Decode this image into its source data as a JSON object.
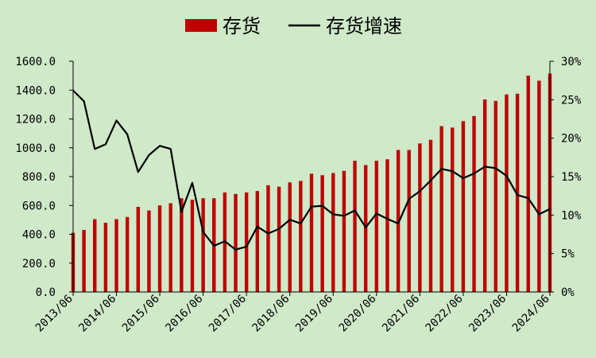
{
  "chart_data": {
    "type": "bar+line",
    "title": "",
    "legend": {
      "placement": "top-center",
      "items": [
        {
          "label": "存货",
          "kind": "bar",
          "color": "#c00000"
        },
        {
          "label": "存货增速",
          "kind": "line",
          "color": "#000000"
        }
      ]
    },
    "colors": {
      "background": "#cfe9c9",
      "bar": "#c00000",
      "line": "#000000"
    },
    "categories": [
      "2013/06",
      "2013/09",
      "2013/12",
      "2014/03",
      "2014/06",
      "2014/09",
      "2014/12",
      "2015/03",
      "2015/06",
      "2015/09",
      "2015/12",
      "2016/03",
      "2016/06",
      "2016/09",
      "2016/12",
      "2017/03",
      "2017/06",
      "2017/09",
      "2017/12",
      "2018/03",
      "2018/06",
      "2018/09",
      "2018/12",
      "2019/03",
      "2019/06",
      "2019/09",
      "2019/12",
      "2020/03",
      "2020/06",
      "2020/09",
      "2020/12",
      "2021/03",
      "2021/06",
      "2021/09",
      "2021/12",
      "2022/03",
      "2022/06",
      "2022/09",
      "2022/12",
      "2023/03",
      "2023/06",
      "2023/09",
      "2023/12",
      "2024/03",
      "2024/06"
    ],
    "x_tick_labels": [
      "2013/06",
      "2014/06",
      "2015/06",
      "2016/06",
      "2017/06",
      "2018/06",
      "2019/06",
      "2020/06",
      "2021/06",
      "2022/06",
      "2023/06",
      "2024/06"
    ],
    "series": [
      {
        "name": "存货",
        "axis": "left",
        "values": [
          410,
          430,
          505,
          480,
          505,
          520,
          590,
          565,
          600,
          615,
          650,
          640,
          650,
          650,
          690,
          680,
          690,
          700,
          740,
          730,
          760,
          770,
          820,
          810,
          825,
          840,
          910,
          880,
          910,
          920,
          985,
          985,
          1030,
          1055,
          1150,
          1140,
          1185,
          1220,
          1335,
          1325,
          1370,
          1375,
          1500,
          1465,
          1515
        ]
      },
      {
        "name": "存货增速",
        "axis": "right",
        "values": [
          26.2,
          24.8,
          18.6,
          19.2,
          22.3,
          20.5,
          15.6,
          17.8,
          19.0,
          18.6,
          10.4,
          14.2,
          7.8,
          6.0,
          6.6,
          5.5,
          5.9,
          8.5,
          7.6,
          8.2,
          9.4,
          8.9,
          11.1,
          11.2,
          10.1,
          9.9,
          10.6,
          8.4,
          10.2,
          9.5,
          8.9,
          12.1,
          13.1,
          14.5,
          16.0,
          15.7,
          14.8,
          15.4,
          16.3,
          16.1,
          15.1,
          12.6,
          12.2,
          10.1,
          10.8
        ]
      }
    ],
    "y_left": {
      "min": 0,
      "max": 1600,
      "step": 200,
      "tick_labels": [
        "0.0",
        "200.0",
        "400.0",
        "600.0",
        "800.0",
        "1000.0",
        "1200.0",
        "1400.0",
        "1600.0"
      ]
    },
    "y_right": {
      "min": 0,
      "max": 30,
      "step": 5,
      "tick_labels": [
        "0%",
        "5%",
        "10%",
        "15%",
        "20%",
        "25%",
        "30%"
      ]
    },
    "grid": false
  }
}
